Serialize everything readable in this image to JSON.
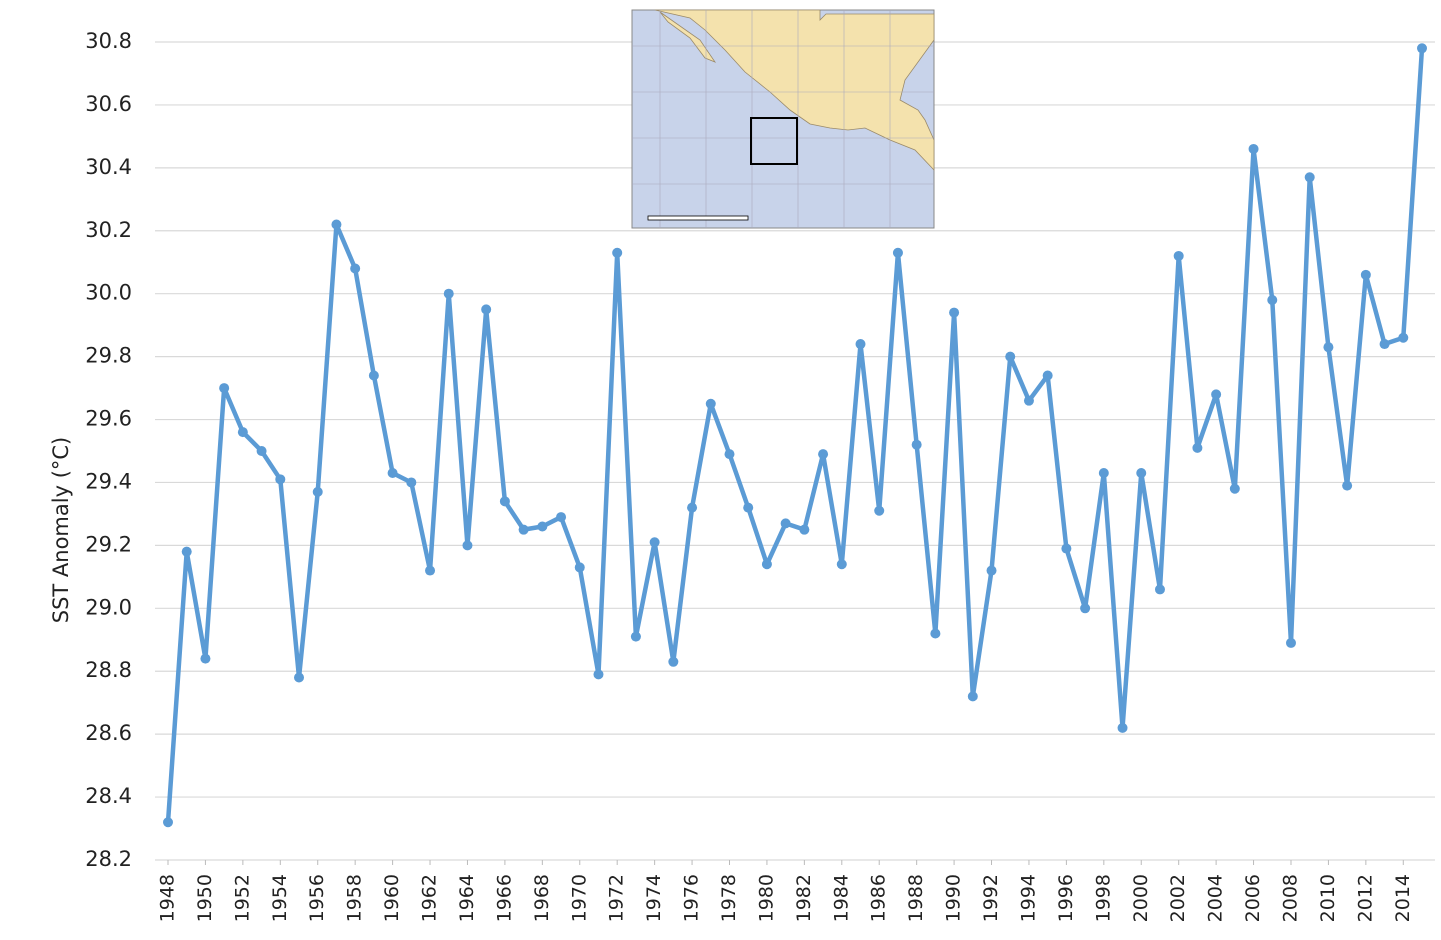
{
  "chart_data": {
    "type": "line",
    "y_label": "SST Anomaly (°C)",
    "x": [
      1948,
      1949,
      1950,
      1951,
      1952,
      1953,
      1954,
      1955,
      1956,
      1957,
      1958,
      1959,
      1960,
      1961,
      1962,
      1963,
      1964,
      1965,
      1966,
      1967,
      1968,
      1969,
      1970,
      1971,
      1972,
      1973,
      1974,
      1975,
      1976,
      1977,
      1978,
      1979,
      1980,
      1981,
      1982,
      1983,
      1984,
      1985,
      1986,
      1987,
      1988,
      1989,
      1990,
      1991,
      1992,
      1993,
      1994,
      1995,
      1996,
      1997,
      1998,
      1999,
      2000,
      2001,
      2002,
      2003,
      2004,
      2005,
      2006,
      2007,
      2008,
      2009,
      2010,
      2011,
      2012,
      2013,
      2014,
      2015
    ],
    "values": [
      28.32,
      29.18,
      28.84,
      29.7,
      29.56,
      29.5,
      29.41,
      28.78,
      29.37,
      30.22,
      30.08,
      29.74,
      29.43,
      29.4,
      29.12,
      30.0,
      29.2,
      29.95,
      29.34,
      29.25,
      29.26,
      29.29,
      29.13,
      28.79,
      30.13,
      28.91,
      29.21,
      28.83,
      29.32,
      29.65,
      29.49,
      29.32,
      29.14,
      29.27,
      29.25,
      29.49,
      29.14,
      29.84,
      29.31,
      30.13,
      29.52,
      28.92,
      29.94,
      28.72,
      29.12,
      29.8,
      29.66,
      29.74,
      29.19,
      29.0,
      29.43,
      28.62,
      29.43,
      29.06,
      30.12,
      29.51,
      29.68,
      29.38,
      30.46,
      29.98,
      28.89,
      30.37,
      29.83,
      29.39,
      30.06,
      29.84,
      29.86,
      30.78
    ],
    "color": "#5b9bd5",
    "xlim": [
      1948,
      2015
    ],
    "xticks": [
      1948,
      1950,
      1952,
      1954,
      1956,
      1958,
      1960,
      1962,
      1964,
      1966,
      1968,
      1970,
      1972,
      1974,
      1976,
      1978,
      1980,
      1982,
      1984,
      1986,
      1988,
      1990,
      1992,
      1994,
      1996,
      1998,
      2000,
      2002,
      2004,
      2006,
      2008,
      2010,
      2012,
      2014
    ],
    "ylim": [
      28.2,
      30.8
    ],
    "yticks": [
      28.2,
      28.4,
      28.6,
      28.8,
      {
        "value": 29,
        "label": "29.0"
      },
      29.2,
      29.4,
      29.6,
      29.8,
      {
        "value": 30,
        "label": "30.0"
      },
      30.2,
      30.4,
      30.6,
      30.8
    ],
    "grid": true
  }
}
